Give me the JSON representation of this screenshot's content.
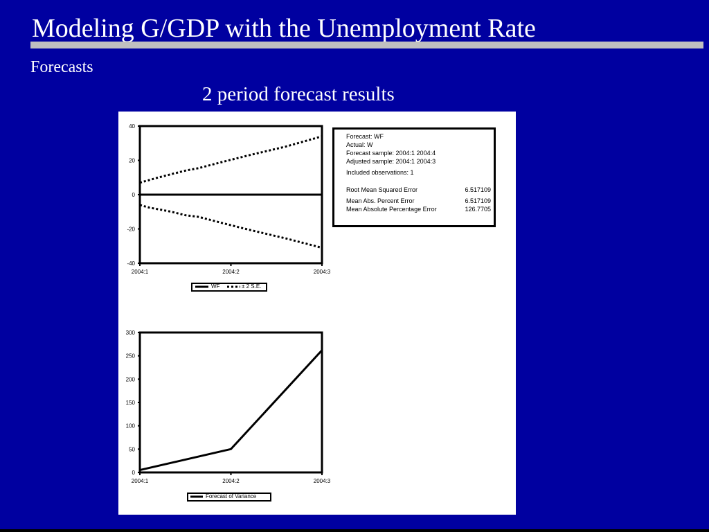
{
  "slide": {
    "title": "Modeling G/GDP with the Unemployment Rate",
    "subtitle": "Forecasts",
    "caption": "2 period forecast results"
  },
  "colors": {
    "background": "#0000a0",
    "title_rule": "#c0c0c0",
    "text": "#ffffff",
    "plot_ink": "#000000",
    "panel": "#ffffff"
  },
  "stats": {
    "forecast": "Forecast: WF",
    "actual": "Actual: W",
    "forecast_sample": "Forecast sample: 2004:1 2004:4",
    "adjusted_sample": "Adjusted sample: 2004:1 2004:3",
    "included_obs": "Included observations: 1",
    "rows": [
      {
        "label": "Root Mean Squared Error",
        "value": "6.517109"
      },
      {
        "label": "Mean Abs. Percent Error",
        "value": "6.517109"
      },
      {
        "label": "Mean Absolute Percentage Error",
        "value": "126.7705"
      }
    ]
  },
  "chart_data": [
    {
      "type": "line",
      "x": [
        "2004:1",
        "2004:2",
        "2004:3"
      ],
      "x_numeric": [
        1,
        2,
        3
      ],
      "ylim": [
        -40,
        40
      ],
      "yticks": [
        40,
        20,
        0,
        -20,
        -40
      ],
      "series": [
        {
          "name": "WF",
          "style": "solid",
          "values": [
            0,
            0,
            0
          ]
        },
        {
          "name": "± 2 S.E.",
          "style": "dotted",
          "values": [
            7,
            8.5,
            10,
            12,
            14,
            15.5,
            19,
            23,
            28,
            34
          ],
          "x_values": [
            1,
            1.1,
            1.2,
            1.35,
            1.5,
            1.65,
            1.9,
            2.2,
            2.6,
            3.0
          ]
        },
        {
          "name": "",
          "style": "dotted",
          "values": [
            -6,
            -7.5,
            -8.5,
            -10,
            -12,
            -13,
            -16.5,
            -20.5,
            -25.5,
            -31
          ],
          "x_values": [
            1,
            1.1,
            1.2,
            1.35,
            1.5,
            1.65,
            1.9,
            2.2,
            2.6,
            3.0
          ]
        }
      ],
      "legend": {
        "entries": [
          "WF",
          "± 2 S.E."
        ],
        "placement": "bottom"
      },
      "grid": false
    },
    {
      "type": "line",
      "x": [
        "2004:1",
        "2004:2",
        "2004:3"
      ],
      "ylim": [
        0,
        300
      ],
      "yticks": [
        300,
        250,
        200,
        150,
        100,
        50,
        0
      ],
      "series": [
        {
          "name": "Forecast of Variance",
          "style": "solid",
          "values": [
            5,
            50,
            262
          ]
        }
      ],
      "legend": {
        "entries": [
          "Forecast of Variance"
        ],
        "placement": "bottom"
      },
      "grid": false
    }
  ]
}
